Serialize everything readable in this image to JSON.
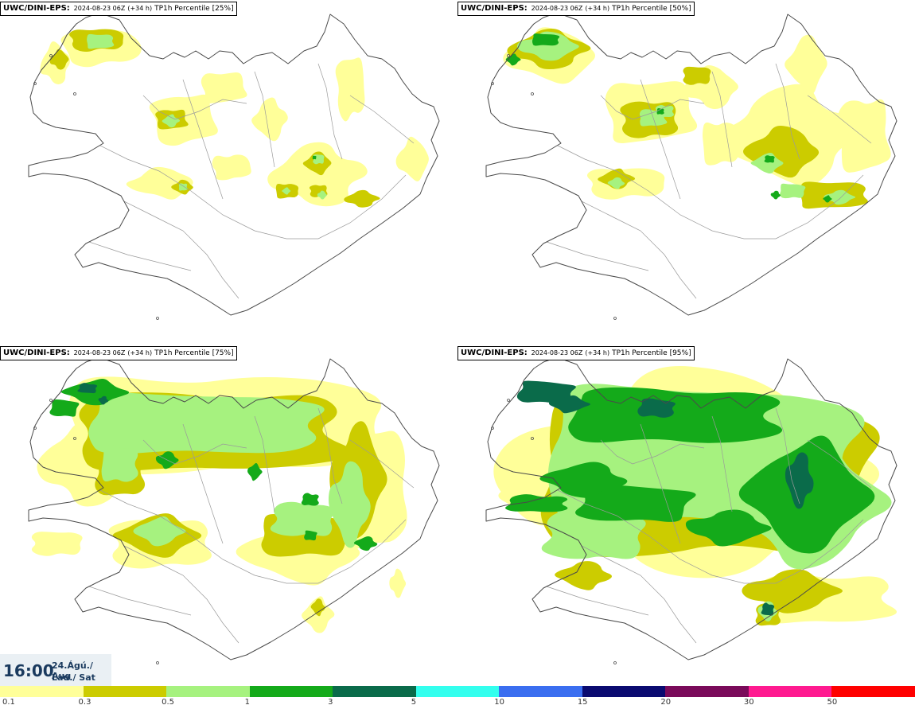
{
  "panels": [
    {
      "model": "UWC/DINI-EPS",
      "model_sep": ":",
      "run": "2024-08-23 06Z",
      "lead": "(+34 h)",
      "field": "TP1h Percentile [25%]",
      "percentile": 25
    },
    {
      "model": "UWC/DINI-EPS",
      "model_sep": ":",
      "run": "2024-08-23 06Z",
      "lead": "(+34 h)",
      "field": "TP1h Percentile [50%]",
      "percentile": 50
    },
    {
      "model": "UWC/DINI-EPS",
      "model_sep": ":",
      "run": "2024-08-23 06Z",
      "lead": "(+34 h)",
      "field": "TP1h Percentile [75%]",
      "percentile": 75
    },
    {
      "model": "UWC/DINI-EPS",
      "model_sep": ":",
      "run": "2024-08-23 06Z",
      "lead": "(+34 h)",
      "field": "TP1h Percentile [95%]",
      "percentile": 95
    }
  ],
  "valid_time": {
    "hour": "16:00",
    "date": "24.Ágú./ Aug",
    "day": "Lau./ Sat"
  },
  "scale": {
    "labels": [
      "0.1",
      "0.3",
      "0.5",
      "1",
      "3",
      "5",
      "10",
      "15",
      "20",
      "30",
      "50"
    ],
    "colors": [
      "#ffff99",
      "#cccc00",
      "#a6f27f",
      "#14aa1a",
      "#0a6b4a",
      "#33ffee",
      "#3a6ef0",
      "#0a0a70",
      "#7a0a5a",
      "#ff1a90",
      "#ff0000"
    ]
  },
  "colors": {
    "coast": "#4a4a4a",
    "land": "#ffffff",
    "ocean": "#ffffff"
  }
}
